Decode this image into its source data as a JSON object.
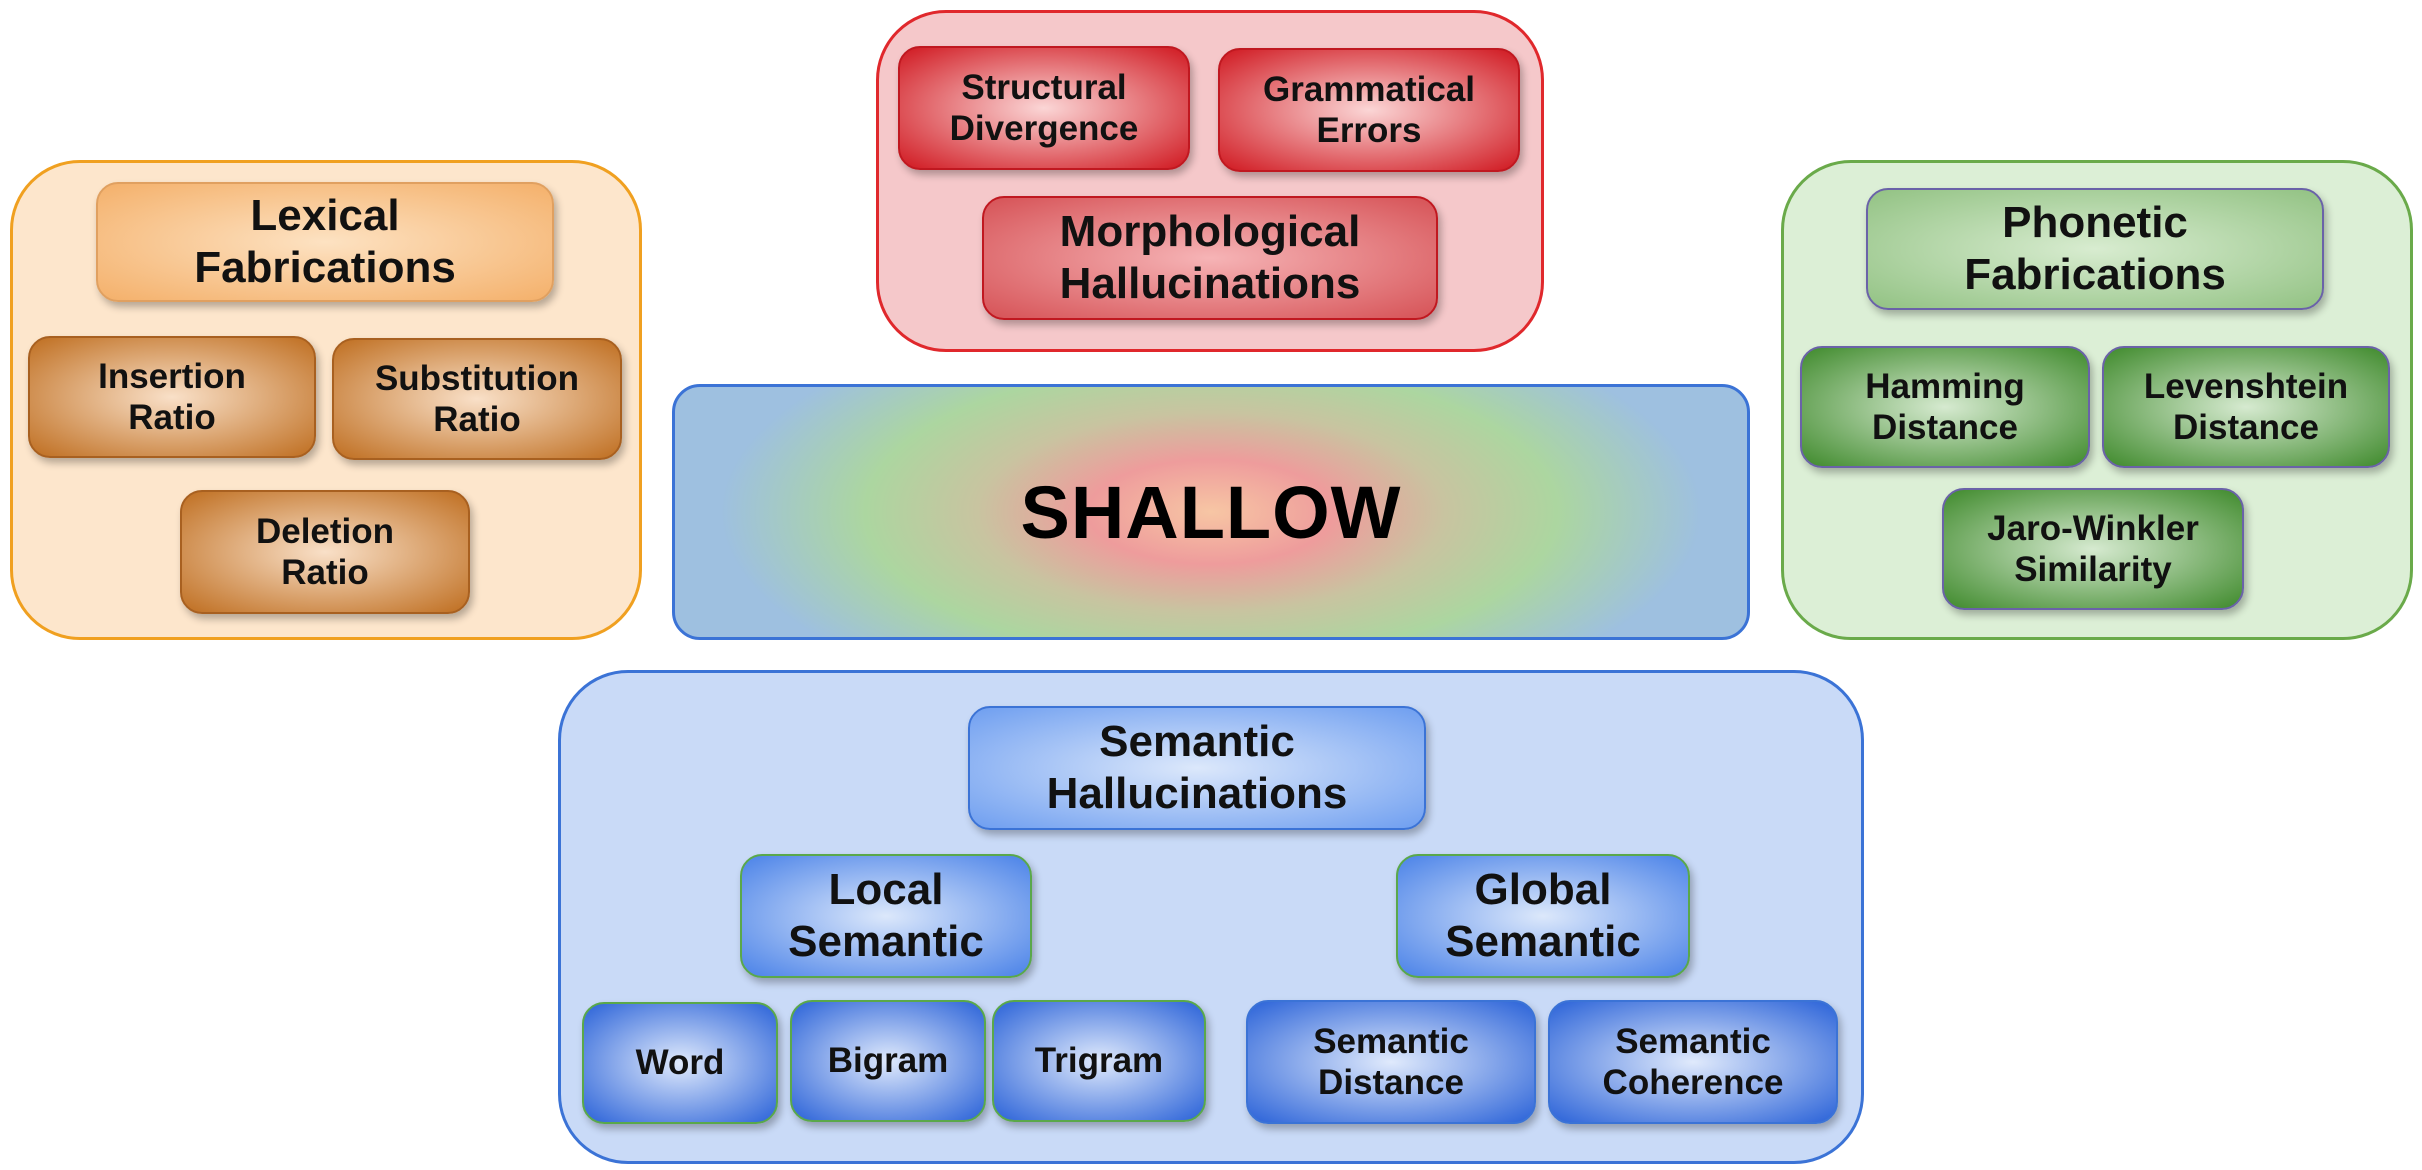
{
  "center": {
    "label": "SHALLOW"
  },
  "lexical": {
    "title_1": "Lexical",
    "title_2": "Fabrications",
    "items": [
      {
        "l1": "Insertion",
        "l2": "Ratio"
      },
      {
        "l1": "Substitution",
        "l2": "Ratio"
      },
      {
        "l1": "Deletion",
        "l2": "Ratio"
      }
    ]
  },
  "morphological": {
    "title_1": "Morphological",
    "title_2": "Hallucinations",
    "items": [
      {
        "l1": "Structural",
        "l2": "Divergence"
      },
      {
        "l1": "Grammatical",
        "l2": "Errors"
      }
    ]
  },
  "phonetic": {
    "title_1": "Phonetic",
    "title_2": "Fabrications",
    "items": [
      {
        "l1": "Hamming",
        "l2": "Distance"
      },
      {
        "l1": "Levenshtein",
        "l2": "Distance"
      },
      {
        "l1": "Jaro-Winkler",
        "l2": "Similarity"
      }
    ]
  },
  "semantic": {
    "title_1": "Semantic",
    "title_2": "Hallucinations",
    "local": {
      "title_1": "Local",
      "title_2": "Semantic",
      "items": [
        "Word",
        "Bigram",
        "Trigram"
      ]
    },
    "global": {
      "title_1": "Global",
      "title_2": "Semantic",
      "items": [
        {
          "l1": "Semantic",
          "l2": "Distance"
        },
        {
          "l1": "Semantic",
          "l2": "Coherence"
        }
      ]
    }
  },
  "colors": {
    "lexical": "#f0a020",
    "morphological": "#e0282c",
    "phonetic": "#6aaa4a",
    "semantic": "#3b73d6"
  }
}
